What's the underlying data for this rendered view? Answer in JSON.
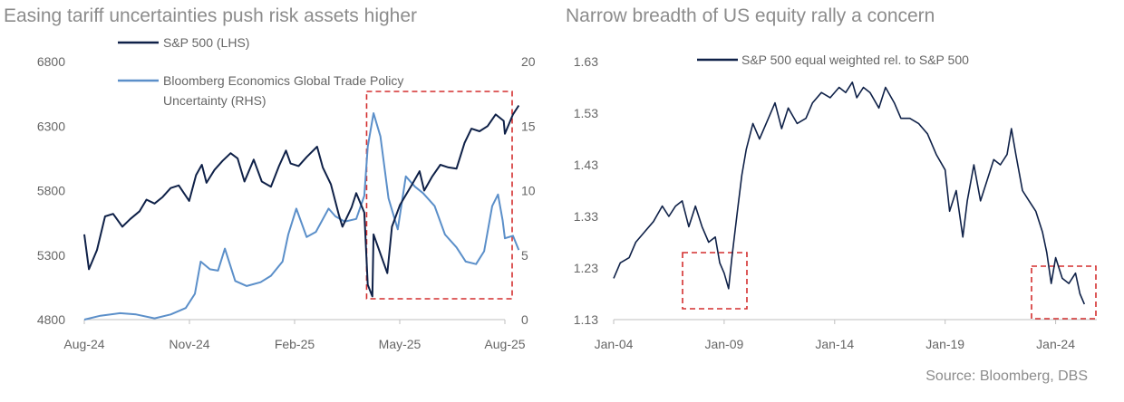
{
  "source": "Source: Bloomberg, DBS",
  "colors": {
    "dark_navy": "#0f2148",
    "light_blue": "#5b8fc9",
    "highlight": "#d32f2f",
    "axis": "#bfbfbf"
  },
  "chart_data": [
    {
      "type": "line",
      "title": "Easing tariff uncertainties push risk assets higher",
      "x_ticks": [
        "Aug-24",
        "Nov-24",
        "Feb-25",
        "May-25",
        "Aug-25"
      ],
      "y_left_ticks": [
        "4800",
        "5300",
        "5800",
        "6300",
        "6800"
      ],
      "y_right_ticks": [
        "0",
        "5",
        "10",
        "15",
        "20"
      ],
      "ylim_left": [
        4800,
        6800
      ],
      "ylim_right": [
        0,
        20
      ],
      "xlim": [
        "2024-08-01",
        "2025-08-01"
      ],
      "legend_placement": "top-left",
      "annotation": "highlight box from Apr-25 to Aug-25",
      "series": [
        {
          "name": "S&P 500 (LHS)",
          "axis": "left",
          "color": "#0f2148",
          "points": [
            [
              "2024-08-01",
              5460
            ],
            [
              "2024-08-05",
              5190
            ],
            [
              "2024-08-12",
              5340
            ],
            [
              "2024-08-19",
              5600
            ],
            [
              "2024-08-26",
              5620
            ],
            [
              "2024-09-03",
              5520
            ],
            [
              "2024-09-10",
              5580
            ],
            [
              "2024-09-18",
              5640
            ],
            [
              "2024-09-24",
              5730
            ],
            [
              "2024-10-01",
              5700
            ],
            [
              "2024-10-08",
              5750
            ],
            [
              "2024-10-15",
              5820
            ],
            [
              "2024-10-22",
              5840
            ],
            [
              "2024-10-31",
              5720
            ],
            [
              "2024-11-06",
              5920
            ],
            [
              "2024-11-11",
              6000
            ],
            [
              "2024-11-15",
              5860
            ],
            [
              "2024-11-22",
              5960
            ],
            [
              "2024-11-29",
              6030
            ],
            [
              "2024-12-06",
              6090
            ],
            [
              "2024-12-12",
              6050
            ],
            [
              "2024-12-18",
              5870
            ],
            [
              "2024-12-26",
              6040
            ],
            [
              "2025-01-02",
              5870
            ],
            [
              "2025-01-10",
              5830
            ],
            [
              "2025-01-17",
              5990
            ],
            [
              "2025-01-23",
              6110
            ],
            [
              "2025-01-27",
              6010
            ],
            [
              "2025-02-03",
              5990
            ],
            [
              "2025-02-10",
              6060
            ],
            [
              "2025-02-19",
              6140
            ],
            [
              "2025-02-24",
              5980
            ],
            [
              "2025-03-03",
              5850
            ],
            [
              "2025-03-10",
              5610
            ],
            [
              "2025-03-13",
              5520
            ],
            [
              "2025-03-21",
              5670
            ],
            [
              "2025-03-25",
              5780
            ],
            [
              "2025-04-01",
              5630
            ],
            [
              "2025-04-04",
              5070
            ],
            [
              "2025-04-08",
              4980
            ],
            [
              "2025-04-09",
              5460
            ],
            [
              "2025-04-21",
              5160
            ],
            [
              "2025-04-25",
              5520
            ],
            [
              "2025-05-02",
              5690
            ],
            [
              "2025-05-12",
              5840
            ],
            [
              "2025-05-19",
              5950
            ],
            [
              "2025-05-23",
              5800
            ],
            [
              "2025-05-30",
              5910
            ],
            [
              "2025-06-06",
              6000
            ],
            [
              "2025-06-13",
              5980
            ],
            [
              "2025-06-20",
              5970
            ],
            [
              "2025-06-27",
              6170
            ],
            [
              "2025-07-03",
              6280
            ],
            [
              "2025-07-10",
              6260
            ],
            [
              "2025-07-17",
              6300
            ],
            [
              "2025-07-24",
              6390
            ],
            [
              "2025-07-31",
              6340
            ],
            [
              "2025-08-01",
              6240
            ],
            [
              "2025-08-08",
              6390
            ],
            [
              "2025-08-13",
              6460
            ]
          ]
        },
        {
          "name": "Bloomberg Economics Global Trade Policy Uncertainty (RHS)",
          "axis": "right",
          "color": "#5b8fc9",
          "points": [
            [
              "2024-08-01",
              0
            ],
            [
              "2024-08-15",
              0.3
            ],
            [
              "2024-09-01",
              0.5
            ],
            [
              "2024-09-15",
              0.4
            ],
            [
              "2024-10-01",
              0.1
            ],
            [
              "2024-10-15",
              0.4
            ],
            [
              "2024-10-28",
              0.9
            ],
            [
              "2024-11-05",
              2.0
            ],
            [
              "2024-11-10",
              4.5
            ],
            [
              "2024-11-18",
              3.9
            ],
            [
              "2024-11-25",
              3.8
            ],
            [
              "2024-12-01",
              5.5
            ],
            [
              "2024-12-10",
              3.0
            ],
            [
              "2024-12-20",
              2.6
            ],
            [
              "2025-01-01",
              2.9
            ],
            [
              "2025-01-10",
              3.4
            ],
            [
              "2025-01-20",
              4.5
            ],
            [
              "2025-01-25",
              6.6
            ],
            [
              "2025-02-01",
              8.6
            ],
            [
              "2025-02-10",
              6.4
            ],
            [
              "2025-02-18",
              6.8
            ],
            [
              "2025-03-01",
              8.6
            ],
            [
              "2025-03-07",
              8.0
            ],
            [
              "2025-03-15",
              7.6
            ],
            [
              "2025-03-25",
              7.8
            ],
            [
              "2025-04-01",
              9.6
            ],
            [
              "2025-04-04",
              13.4
            ],
            [
              "2025-04-09",
              16.0
            ],
            [
              "2025-04-15",
              14.2
            ],
            [
              "2025-04-22",
              9.4
            ],
            [
              "2025-04-30",
              7.0
            ],
            [
              "2025-05-07",
              11.1
            ],
            [
              "2025-05-15",
              10.3
            ],
            [
              "2025-05-22",
              9.8
            ],
            [
              "2025-06-01",
              8.8
            ],
            [
              "2025-06-10",
              6.6
            ],
            [
              "2025-06-20",
              5.6
            ],
            [
              "2025-06-28",
              4.5
            ],
            [
              "2025-07-07",
              4.3
            ],
            [
              "2025-07-14",
              5.3
            ],
            [
              "2025-07-21",
              8.8
            ],
            [
              "2025-07-26",
              9.7
            ],
            [
              "2025-07-30",
              7.7
            ],
            [
              "2025-08-01",
              6.3
            ],
            [
              "2025-08-08",
              6.5
            ],
            [
              "2025-08-13",
              5.4
            ]
          ]
        }
      ]
    },
    {
      "type": "line",
      "title": "Narrow breadth of US equity rally a concern",
      "x_ticks": [
        "Jan-04",
        "Jan-09",
        "Jan-14",
        "Jan-19",
        "Jan-24"
      ],
      "y_ticks": [
        "1.13",
        "1.23",
        "1.33",
        "1.43",
        "1.53",
        "1.63"
      ],
      "ylim": [
        1.13,
        1.63
      ],
      "xlim": [
        2004.0,
        2025.6
      ],
      "legend_placement": "top",
      "annotation": "highlight boxes around 2008-2009 and 2024-2025 lows",
      "series": [
        {
          "name": "S&P 500 equal weighted rel. to S&P 500",
          "color": "#0f2148",
          "points": [
            [
              2004.0,
              1.21
            ],
            [
              2004.3,
              1.24
            ],
            [
              2004.7,
              1.25
            ],
            [
              2005.0,
              1.28
            ],
            [
              2005.4,
              1.3
            ],
            [
              2005.8,
              1.32
            ],
            [
              2006.2,
              1.35
            ],
            [
              2006.5,
              1.33
            ],
            [
              2006.8,
              1.35
            ],
            [
              2007.1,
              1.36
            ],
            [
              2007.4,
              1.31
            ],
            [
              2007.7,
              1.35
            ],
            [
              2008.0,
              1.31
            ],
            [
              2008.3,
              1.28
            ],
            [
              2008.6,
              1.29
            ],
            [
              2008.8,
              1.24
            ],
            [
              2009.0,
              1.22
            ],
            [
              2009.2,
              1.19
            ],
            [
              2009.35,
              1.25
            ],
            [
              2009.6,
              1.34
            ],
            [
              2009.8,
              1.41
            ],
            [
              2010.0,
              1.46
            ],
            [
              2010.3,
              1.51
            ],
            [
              2010.6,
              1.48
            ],
            [
              2011.0,
              1.52
            ],
            [
              2011.3,
              1.55
            ],
            [
              2011.6,
              1.5
            ],
            [
              2011.9,
              1.54
            ],
            [
              2012.3,
              1.51
            ],
            [
              2012.7,
              1.52
            ],
            [
              2013.0,
              1.55
            ],
            [
              2013.4,
              1.57
            ],
            [
              2013.8,
              1.56
            ],
            [
              2014.2,
              1.58
            ],
            [
              2014.5,
              1.57
            ],
            [
              2014.8,
              1.59
            ],
            [
              2015.0,
              1.56
            ],
            [
              2015.3,
              1.58
            ],
            [
              2015.6,
              1.57
            ],
            [
              2016.0,
              1.54
            ],
            [
              2016.3,
              1.58
            ],
            [
              2016.7,
              1.55
            ],
            [
              2017.0,
              1.52
            ],
            [
              2017.4,
              1.52
            ],
            [
              2017.8,
              1.51
            ],
            [
              2018.2,
              1.49
            ],
            [
              2018.6,
              1.45
            ],
            [
              2019.0,
              1.42
            ],
            [
              2019.2,
              1.34
            ],
            [
              2019.5,
              1.38
            ],
            [
              2019.8,
              1.29
            ],
            [
              2020.0,
              1.36
            ],
            [
              2020.3,
              1.43
            ],
            [
              2020.6,
              1.36
            ],
            [
              2020.9,
              1.4
            ],
            [
              2021.2,
              1.44
            ],
            [
              2021.5,
              1.43
            ],
            [
              2021.8,
              1.45
            ],
            [
              2022.0,
              1.5
            ],
            [
              2022.2,
              1.45
            ],
            [
              2022.5,
              1.38
            ],
            [
              2022.8,
              1.36
            ],
            [
              2023.1,
              1.34
            ],
            [
              2023.4,
              1.3
            ],
            [
              2023.6,
              1.26
            ],
            [
              2023.8,
              1.2
            ],
            [
              2024.0,
              1.25
            ],
            [
              2024.3,
              1.21
            ],
            [
              2024.6,
              1.2
            ],
            [
              2024.9,
              1.22
            ],
            [
              2025.1,
              1.18
            ],
            [
              2025.3,
              1.16
            ]
          ]
        }
      ]
    }
  ]
}
